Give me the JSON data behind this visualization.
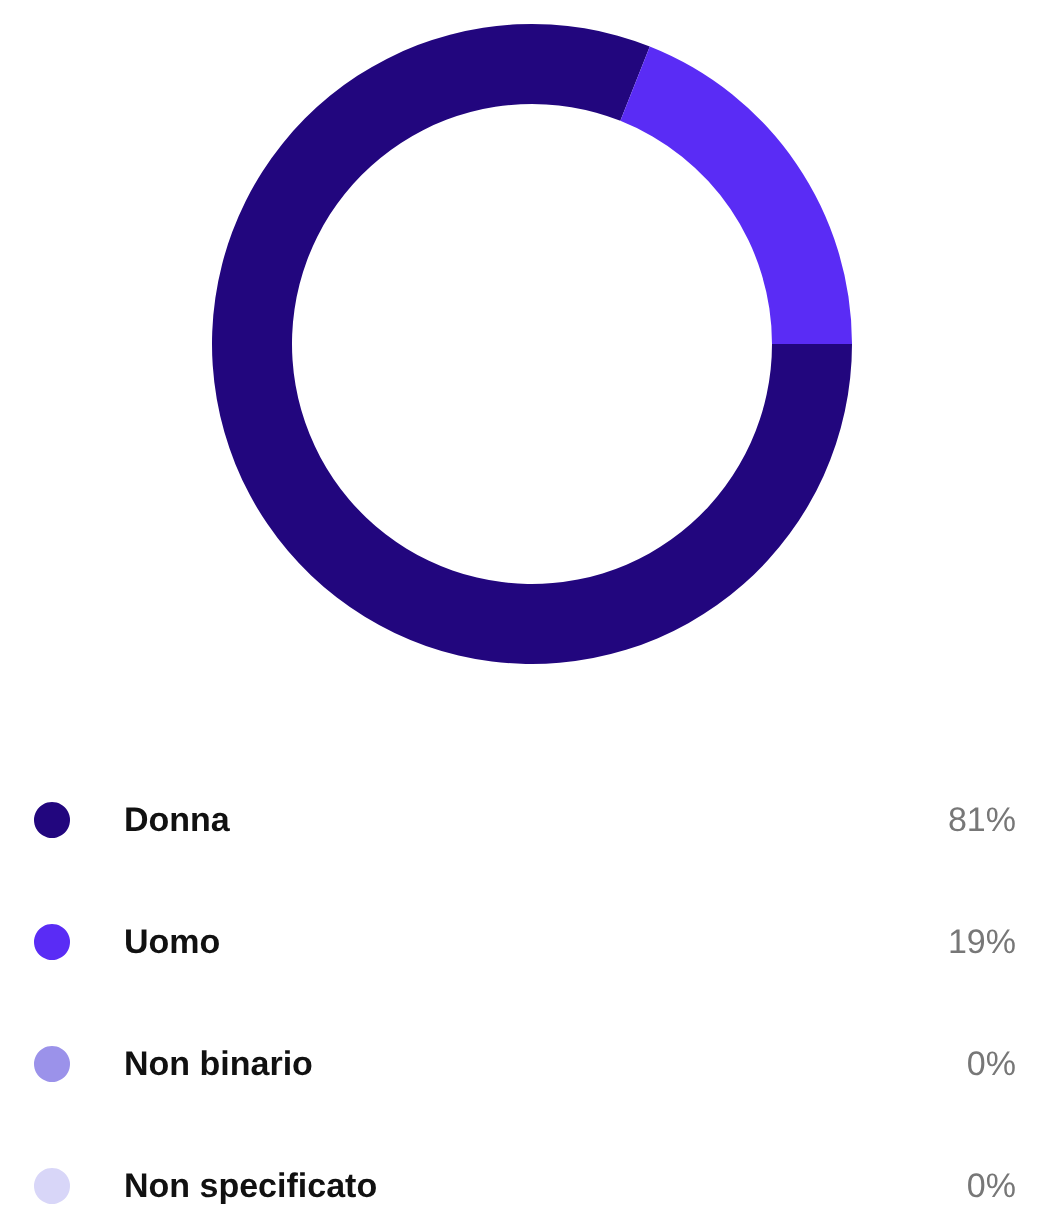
{
  "chart_data": {
    "type": "donut",
    "categories": [
      "Donna",
      "Uomo",
      "Non binario",
      "Non specificato"
    ],
    "values": [
      81,
      19,
      0,
      0
    ],
    "colors": [
      "#22067e",
      "#5a2cf5",
      "#9b92ea",
      "#d8d6f8"
    ],
    "value_labels": [
      "81%",
      "19%",
      "0%",
      "0%"
    ],
    "legend": "bottom"
  }
}
